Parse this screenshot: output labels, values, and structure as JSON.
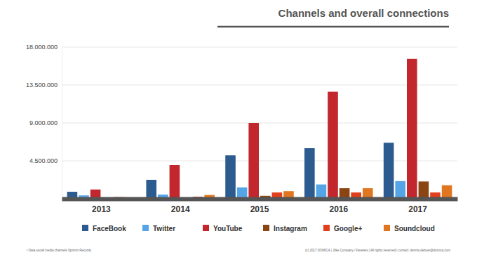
{
  "chart_data": {
    "type": "bar",
    "title": "Channels and overall connections",
    "categories": [
      "2013",
      "2014",
      "2015",
      "2016",
      "2017"
    ],
    "series": [
      {
        "name": "FaceBook",
        "color": "#2c5b8f",
        "values": [
          830000,
          2250000,
          5150000,
          6000000,
          6650000
        ]
      },
      {
        "name": "Twitter",
        "color": "#55a5e6",
        "values": [
          400000,
          500000,
          1350000,
          1700000,
          2100000
        ]
      },
      {
        "name": "YouTube",
        "color": "#c1272d",
        "values": [
          1100000,
          4000000,
          9000000,
          12700000,
          16600000
        ]
      },
      {
        "name": "Instagram",
        "color": "#8a4513",
        "values": [
          50000,
          150000,
          350000,
          1250000,
          2050000
        ]
      },
      {
        "name": "Google+",
        "color": "#e2401c",
        "values": [
          200000,
          250000,
          750000,
          750000,
          750000
        ]
      },
      {
        "name": "Soundcloud",
        "color": "#e0761f",
        "values": [
          100000,
          450000,
          900000,
          1250000,
          1600000
        ]
      }
    ],
    "ylim": [
      0,
      18000000
    ],
    "yticks": [
      {
        "value": 4500000,
        "label": "4.500.000"
      },
      {
        "value": 9000000,
        "label": "9.000.000"
      },
      {
        "value": 13500000,
        "label": "13.500.000"
      },
      {
        "value": 18000000,
        "label": "18.000.000"
      }
    ],
    "grid": true,
    "legend": "bottom",
    "annotations": [
      "¹ Data social media channels Spinnin Records",
      "(c) 2017 DOMICA | Jilke Company / Favelets | All rights reserved | contact: dennis.deboer@domica.com"
    ]
  }
}
